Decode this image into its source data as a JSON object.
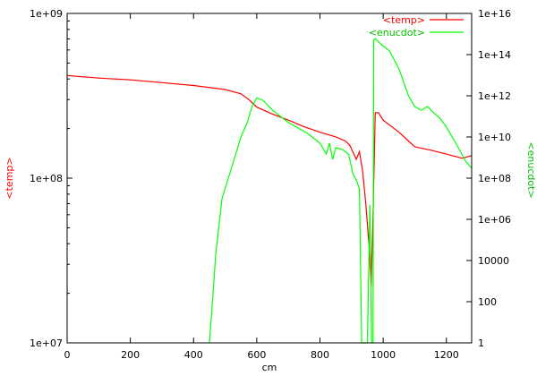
{
  "chart_data": {
    "type": "line",
    "title": "",
    "xlabel": "cm",
    "ylabel_left": "<temp>",
    "ylabel_right": "<enucdot>",
    "xlim": [
      0,
      1280
    ],
    "ylim_left": [
      10000000,
      1000000000
    ],
    "ylim_right": [
      1,
      1e+16
    ],
    "yscale_left": "log",
    "yscale_right": "log",
    "grid": false,
    "legend_position": "top-right",
    "x_ticks": [
      "0",
      "200",
      "400",
      "600",
      "800",
      "1000",
      "1200"
    ],
    "y_left_ticks": [
      "1e+07",
      "1e+08",
      "1e+09"
    ],
    "y_right_ticks": [
      "1",
      "100",
      "10000",
      "1e+06",
      "1e+08",
      "1e+10",
      "1e+12",
      "1e+14",
      "1e+16"
    ],
    "series": [
      {
        "name": "<temp>",
        "axis": "left",
        "color": "#ff0000",
        "points": [
          [
            0,
            420000000
          ],
          [
            100,
            405000000
          ],
          [
            200,
            395000000
          ],
          [
            300,
            380000000
          ],
          [
            400,
            365000000
          ],
          [
            500,
            345000000
          ],
          [
            550,
            325000000
          ],
          [
            575,
            300000000
          ],
          [
            600,
            270000000
          ],
          [
            650,
            245000000
          ],
          [
            700,
            225000000
          ],
          [
            750,
            205000000
          ],
          [
            800,
            190000000
          ],
          [
            850,
            178000000
          ],
          [
            880,
            168000000
          ],
          [
            895,
            158000000
          ],
          [
            900,
            150000000
          ],
          [
            915,
            130000000
          ],
          [
            925,
            145000000
          ],
          [
            935,
            110000000
          ],
          [
            945,
            70000000
          ],
          [
            955,
            40000000
          ],
          [
            962,
            22000000
          ],
          [
            968,
            60000000
          ],
          [
            975,
            250000000
          ],
          [
            985,
            250000000
          ],
          [
            1000,
            225000000
          ],
          [
            1050,
            190000000
          ],
          [
            1080,
            168000000
          ],
          [
            1100,
            155000000
          ],
          [
            1150,
            148000000
          ],
          [
            1200,
            140000000
          ],
          [
            1250,
            132000000
          ],
          [
            1280,
            137000000
          ]
        ]
      },
      {
        "name": "<enucdot>",
        "axis": "right",
        "color": "#00ff00",
        "points": [
          [
            450,
            1
          ],
          [
            460,
            100
          ],
          [
            470,
            20000
          ],
          [
            490,
            10000000
          ],
          [
            510,
            100000000
          ],
          [
            530,
            1000000000
          ],
          [
            550,
            10000000000
          ],
          [
            570,
            50000000000
          ],
          [
            585,
            300000000000
          ],
          [
            600,
            800000000000
          ],
          [
            620,
            600000000000
          ],
          [
            650,
            200000000000
          ],
          [
            700,
            50000000000
          ],
          [
            760,
            15000000000
          ],
          [
            800,
            5000000000
          ],
          [
            820,
            1500000000
          ],
          [
            830,
            5000000000
          ],
          [
            840,
            800000000
          ],
          [
            850,
            3000000000
          ],
          [
            870,
            2500000000
          ],
          [
            890,
            1500000000
          ],
          [
            905,
            150000000
          ],
          [
            915,
            80000000
          ],
          [
            925,
            30000000
          ],
          [
            932,
            1
          ],
          [
            940,
            1
          ],
          [
            950,
            1
          ],
          [
            958,
            5000000
          ],
          [
            963,
            1
          ],
          [
            968,
            1
          ],
          [
            970,
            500000000000000
          ],
          [
            975,
            600000000000000
          ],
          [
            995,
            300000000000000
          ],
          [
            1020,
            150000000000000
          ],
          [
            1050,
            20000000000000
          ],
          [
            1080,
            1000000000000
          ],
          [
            1100,
            300000000000
          ],
          [
            1120,
            200000000000
          ],
          [
            1140,
            300000000000
          ],
          [
            1160,
            150000000000
          ],
          [
            1180,
            80000000000
          ],
          [
            1200,
            30000000000
          ],
          [
            1230,
            5000000000
          ],
          [
            1260,
            700000000
          ],
          [
            1280,
            300000000
          ]
        ]
      }
    ]
  }
}
